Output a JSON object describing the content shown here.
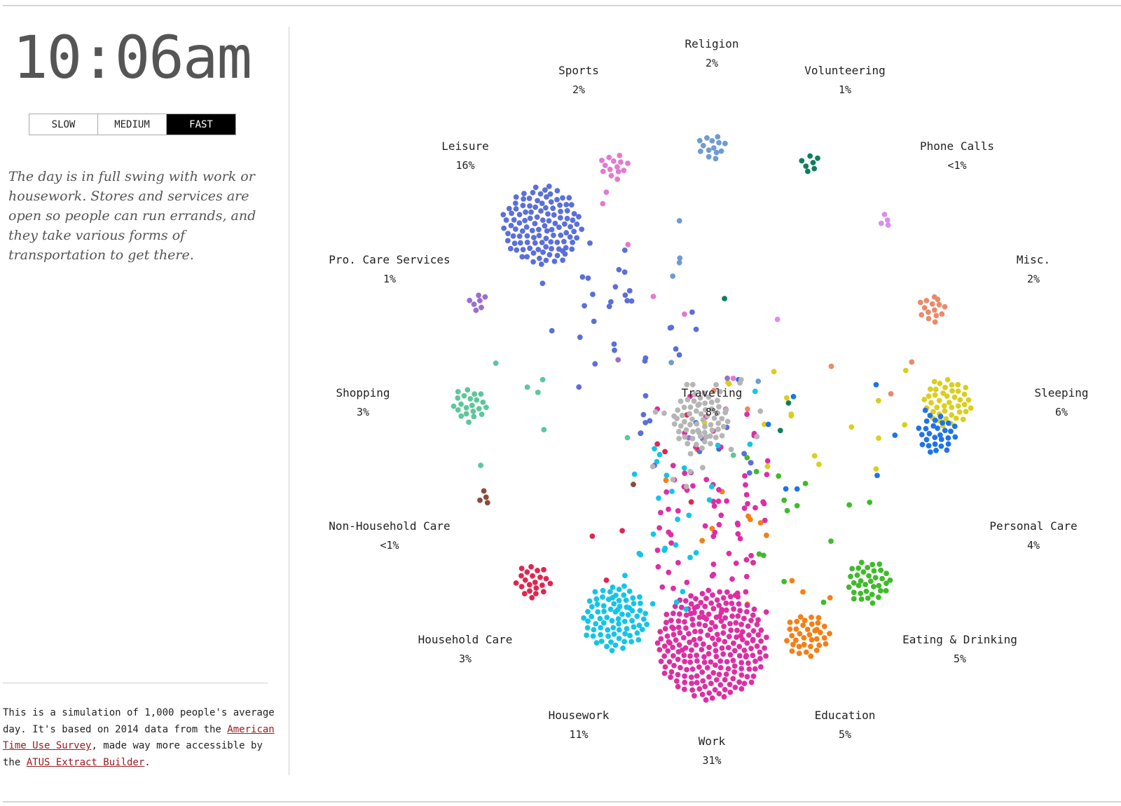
{
  "clock": {
    "time": "10:06am"
  },
  "speed_controls": {
    "options": [
      "SLOW",
      "MEDIUM",
      "FAST"
    ],
    "selected": "FAST"
  },
  "narrative": "The day is in full swing with work or housework. Stores and services are open so people can run errands, and they take various forms of transportation to get there.",
  "footer": {
    "text_1": "This is a simulation of 1,000 people's average day. It's based on 2014 data from the ",
    "link_1": "American Time Use Survey",
    "text_2": ", made way more accessible by the ",
    "link_2": "ATUS Extract Builder",
    "text_3": "."
  },
  "simulation": {
    "people": 1000,
    "activities": [
      {
        "name": "Religion",
        "percent": "2%",
        "share": 0.02,
        "color": "#6f9bd0"
      },
      {
        "name": "Volunteering",
        "percent": "1%",
        "share": 0.01,
        "color": "#0e7f5c"
      },
      {
        "name": "Phone Calls",
        "percent": "<1%",
        "share": 0.005,
        "color": "#d98ef0"
      },
      {
        "name": "Misc.",
        "percent": "2%",
        "share": 0.02,
        "color": "#ea8a6a"
      },
      {
        "name": "Sleeping",
        "percent": "6%",
        "share": 0.06,
        "color": "#d9cf1c"
      },
      {
        "name": "Personal Care",
        "percent": "4%",
        "share": 0.04,
        "color": "#1f73e8"
      },
      {
        "name": "Eating & Drinking",
        "percent": "5%",
        "share": 0.05,
        "color": "#3fbb2a"
      },
      {
        "name": "Education",
        "percent": "5%",
        "share": 0.05,
        "color": "#f57f14"
      },
      {
        "name": "Work",
        "percent": "31%",
        "share": 0.31,
        "color": "#dd2ea4"
      },
      {
        "name": "Housework",
        "percent": "11%",
        "share": 0.11,
        "color": "#14c4e8"
      },
      {
        "name": "Household Care",
        "percent": "3%",
        "share": 0.03,
        "color": "#e0264f"
      },
      {
        "name": "Non-Household Care",
        "percent": "<1%",
        "share": 0.005,
        "color": "#8b4b3a"
      },
      {
        "name": "Shopping",
        "percent": "3%",
        "share": 0.03,
        "color": "#5cc79a"
      },
      {
        "name": "Pro. Care Services",
        "percent": "1%",
        "share": 0.01,
        "color": "#9a6fcc"
      },
      {
        "name": "Leisure",
        "percent": "16%",
        "share": 0.16,
        "color": "#5a6fd8"
      },
      {
        "name": "Sports",
        "percent": "2%",
        "share": 0.02,
        "color": "#e47ad0"
      },
      {
        "name": "Traveling",
        "percent": "8%",
        "share": 0.08,
        "color": "#b5b5b5"
      }
    ]
  }
}
